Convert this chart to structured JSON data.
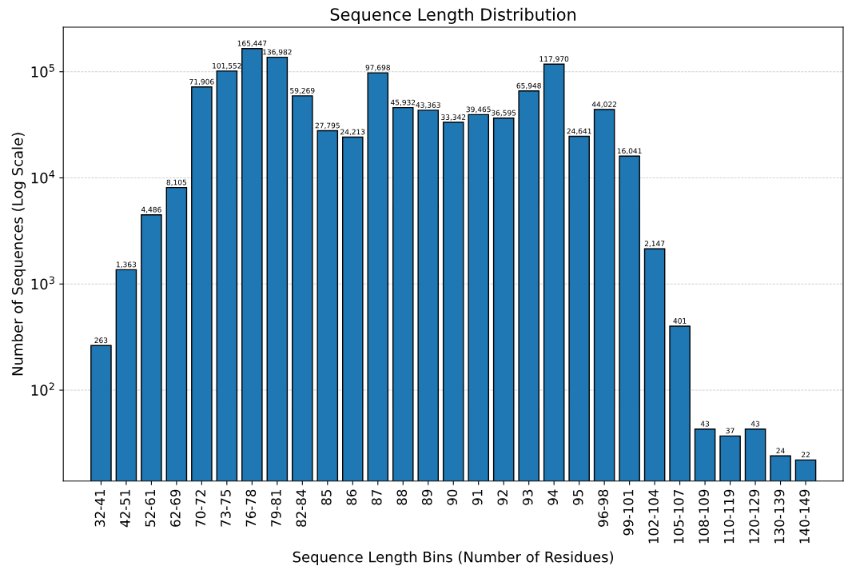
{
  "chart_data": {
    "type": "bar",
    "title": "Sequence Length Distribution",
    "xlabel": "Sequence Length Bins (Number of Residues)",
    "ylabel": "Number of Sequences (Log Scale)",
    "categories": [
      "32-41",
      "42-51",
      "52-61",
      "62-69",
      "70-72",
      "73-75",
      "76-78",
      "79-81",
      "82-84",
      "85",
      "86",
      "87",
      "88",
      "89",
      "90",
      "91",
      "92",
      "93",
      "94",
      "95",
      "96-98",
      "99-101",
      "102-104",
      "105-107",
      "108-109",
      "110-119",
      "120-129",
      "130-139",
      "140-149"
    ],
    "values": [
      263,
      1363,
      4486,
      8105,
      71906,
      101552,
      165447,
      136982,
      59269,
      27795,
      24213,
      97698,
      45932,
      43363,
      33342,
      39465,
      36595,
      65948,
      117970,
      24641,
      44022,
      16041,
      2147,
      401,
      43,
      37,
      43,
      24,
      22
    ],
    "value_labels": [
      "263",
      "1,363",
      "4,486",
      "8,105",
      "71,906",
      "101,552",
      "165,447",
      "136,982",
      "59,269",
      "27,795",
      "24,213",
      "97,698",
      "45,932",
      "43,363",
      "33,342",
      "39,465",
      "36,595",
      "65,948",
      "117,970",
      "24,641",
      "44,022",
      "16,041",
      "2,147",
      "401",
      "43",
      "37",
      "43",
      "24",
      "22"
    ],
    "color": "#1f77b4",
    "log": true,
    "ylim": [
      13.9,
      263000
    ],
    "yticks": [
      {
        "value": 100,
        "label": "10$^{2}$"
      },
      {
        "value": 1000,
        "label": "10$^{3}$"
      },
      {
        "value": 10000,
        "label": "10$^{4}$"
      },
      {
        "value": 100000,
        "label": "10$^{5}$"
      }
    ],
    "grid": "y"
  }
}
